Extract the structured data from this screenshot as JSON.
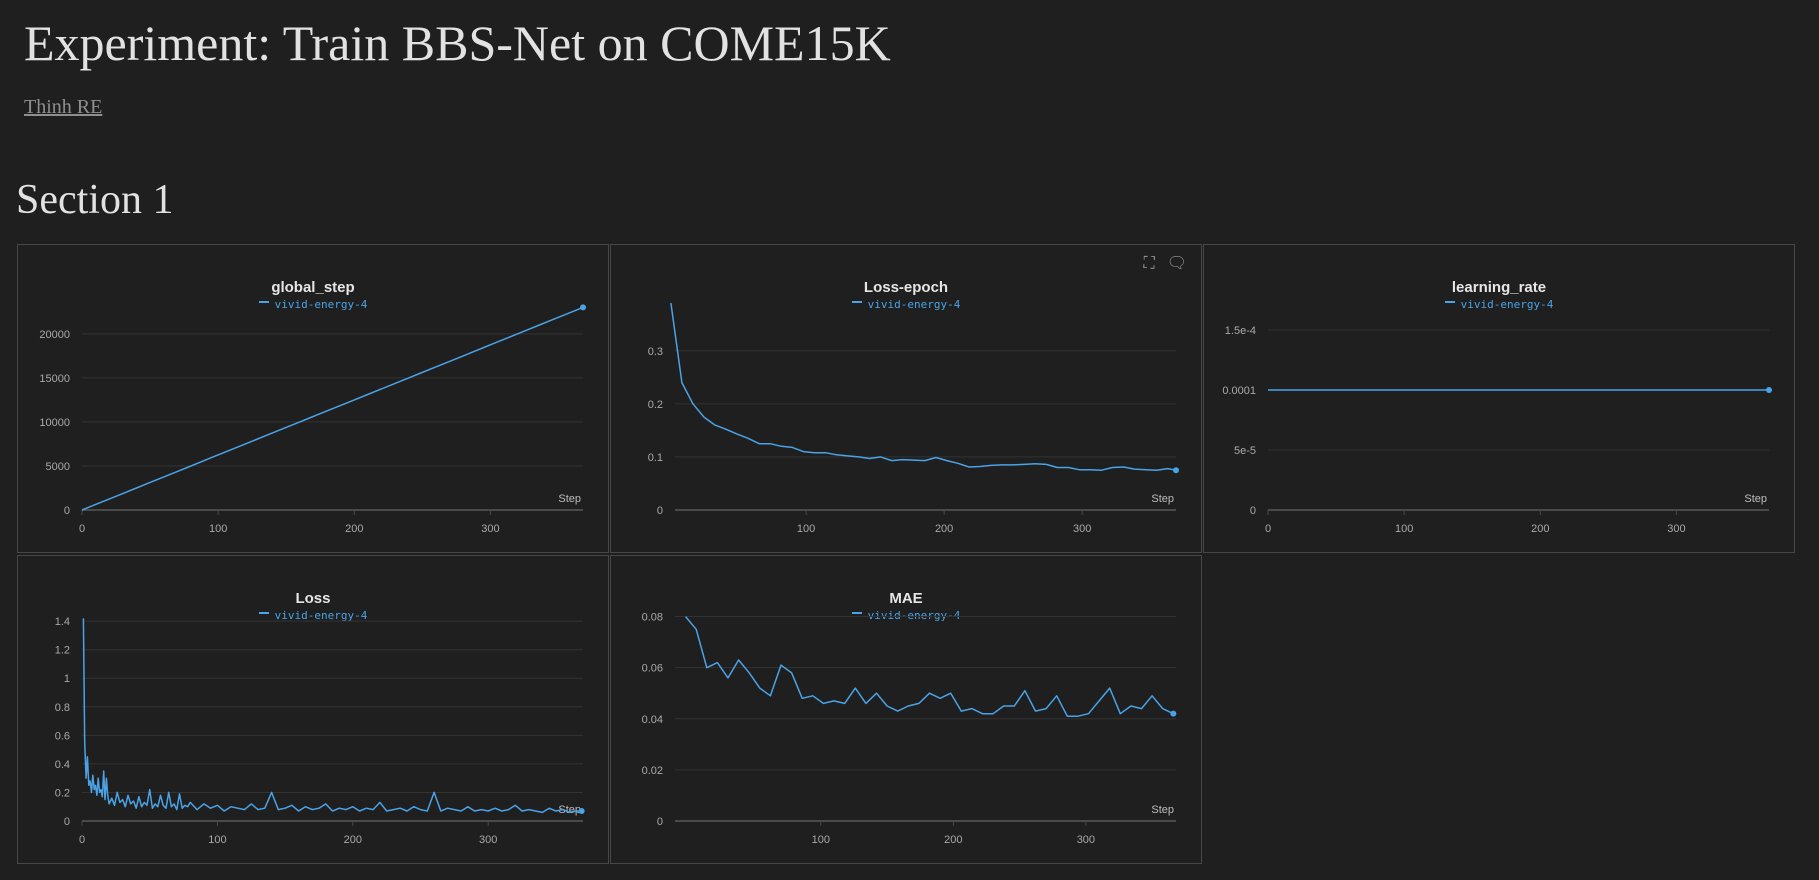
{
  "page": {
    "title": "Experiment: Train BBS-Net on COME15K",
    "author": "Thinh RE",
    "section_title": "Section 1"
  },
  "colors": {
    "series": "#4aa3e6",
    "grid": "#333333",
    "axis": "#4a4a4a"
  },
  "icons": {
    "fullscreen": "fullscreen-icon",
    "comment": "comment-icon"
  },
  "chart_data": [
    {
      "type": "line",
      "title": "global_step",
      "xlabel": "Step",
      "ylabel": "",
      "legend_position": "top-center",
      "legend": "vivid-energy-4",
      "xlim": [
        0,
        368
      ],
      "ylim": [
        0,
        23500
      ],
      "x_ticks": [
        0,
        100,
        200,
        300
      ],
      "y_ticks": [
        {
          "v": 0,
          "t": "0"
        },
        {
          "v": 5000,
          "t": "5000"
        },
        {
          "v": 10000,
          "t": "10000"
        },
        {
          "v": 15000,
          "t": "15000"
        },
        {
          "v": 20000,
          "t": "20000"
        }
      ],
      "series": [
        {
          "name": "vivid-energy-4",
          "x": [
            0,
            8,
            16,
            24,
            32,
            40,
            48,
            56,
            64,
            72,
            80,
            88,
            96,
            104,
            112,
            120,
            128,
            136,
            144,
            152,
            160,
            168,
            176,
            184,
            192,
            200,
            208,
            216,
            224,
            232,
            240,
            248,
            256,
            264,
            272,
            280,
            288,
            296,
            304,
            312,
            320,
            328,
            336,
            344,
            352,
            360,
            368
          ],
          "y": [
            0,
            500,
            1000,
            1500,
            2000,
            2500,
            3000,
            3500,
            4000,
            4500,
            5000,
            5500,
            6000,
            6500,
            7000,
            7500,
            8000,
            8500,
            9000,
            9500,
            10000,
            10500,
            11000,
            11500,
            12000,
            12500,
            13000,
            13500,
            14000,
            14500,
            15000,
            15500,
            16000,
            16500,
            17000,
            17500,
            18000,
            18500,
            19000,
            19500,
            20000,
            20500,
            21000,
            21500,
            22000,
            22500,
            23000
          ]
        }
      ]
    },
    {
      "type": "line",
      "title": "Loss-epoch",
      "xlabel": "Step",
      "ylabel": "",
      "legend_position": "top-center",
      "legend": "vivid-energy-4",
      "xlim": [
        5,
        368
      ],
      "ylim": [
        0,
        0.39
      ],
      "x_ticks": [
        100,
        200,
        300
      ],
      "y_ticks": [
        {
          "v": 0,
          "t": "0"
        },
        {
          "v": 0.1,
          "t": "0.1"
        },
        {
          "v": 0.2,
          "t": "0.2"
        },
        {
          "v": 0.3,
          "t": "0.3"
        }
      ],
      "series": [
        {
          "name": "vivid-energy-4",
          "x": [
            2,
            10,
            18,
            26,
            34,
            42,
            50,
            58,
            66,
            74,
            82,
            90,
            98,
            106,
            114,
            122,
            130,
            138,
            146,
            154,
            162,
            170,
            178,
            186,
            194,
            202,
            210,
            218,
            226,
            234,
            242,
            250,
            258,
            266,
            274,
            282,
            290,
            298,
            306,
            314,
            322,
            330,
            338,
            346,
            354,
            362,
            368
          ],
          "y": [
            0.39,
            0.24,
            0.2,
            0.175,
            0.16,
            0.152,
            0.143,
            0.135,
            0.125,
            0.125,
            0.12,
            0.118,
            0.11,
            0.108,
            0.108,
            0.104,
            0.102,
            0.1,
            0.097,
            0.1,
            0.093,
            0.095,
            0.094,
            0.093,
            0.099,
            0.093,
            0.088,
            0.081,
            0.082,
            0.084,
            0.085,
            0.085,
            0.086,
            0.087,
            0.086,
            0.08,
            0.08,
            0.076,
            0.076,
            0.075,
            0.08,
            0.081,
            0.077,
            0.076,
            0.075,
            0.078,
            0.075
          ]
        }
      ]
    },
    {
      "type": "line",
      "title": "learning_rate",
      "xlabel": "Step",
      "ylabel": "",
      "legend_position": "top-center",
      "legend": "vivid-energy-4",
      "xlim": [
        0,
        368
      ],
      "ylim": [
        0,
        0.0001725
      ],
      "x_ticks": [
        0,
        100,
        200,
        300
      ],
      "y_ticks": [
        {
          "v": 0,
          "t": "0"
        },
        {
          "v": 5e-05,
          "t": "5e-5"
        },
        {
          "v": 0.0001,
          "t": "0.0001"
        },
        {
          "v": 0.00015,
          "t": "1.5e-4"
        }
      ],
      "series": [
        {
          "name": "vivid-energy-4",
          "x": [
            0,
            368
          ],
          "y": [
            0.0001,
            0.0001
          ]
        }
      ]
    },
    {
      "type": "line",
      "title": "Loss",
      "xlabel": "Step",
      "ylabel": "",
      "legend_position": "top-center",
      "legend": "vivid-energy-4",
      "xlim": [
        0,
        370
      ],
      "ylim": [
        0,
        1.45
      ],
      "x_ticks": [
        0,
        100,
        200,
        300
      ],
      "y_ticks": [
        {
          "v": 0,
          "t": "0"
        },
        {
          "v": 0.2,
          "t": "0.2"
        },
        {
          "v": 0.4,
          "t": "0.4"
        },
        {
          "v": 0.6,
          "t": "0.6"
        },
        {
          "v": 0.8,
          "t": "0.8"
        },
        {
          "v": 1,
          "t": "1"
        },
        {
          "v": 1.2,
          "t": "1.2"
        },
        {
          "v": 1.4,
          "t": "1.4"
        }
      ],
      "series": [
        {
          "name": "vivid-energy-4",
          "x": [
            1,
            2,
            3,
            4,
            5,
            6,
            7,
            8,
            9,
            10,
            11,
            12,
            13,
            14,
            15,
            16,
            17,
            18,
            19,
            20,
            22,
            24,
            26,
            28,
            30,
            32,
            34,
            36,
            38,
            40,
            42,
            44,
            46,
            48,
            50,
            52,
            54,
            56,
            58,
            60,
            62,
            64,
            66,
            68,
            70,
            72,
            74,
            76,
            78,
            80,
            85,
            90,
            95,
            100,
            105,
            110,
            115,
            120,
            125,
            130,
            135,
            140,
            145,
            150,
            155,
            160,
            165,
            170,
            175,
            180,
            185,
            190,
            195,
            200,
            205,
            210,
            215,
            220,
            225,
            230,
            235,
            240,
            245,
            250,
            255,
            260,
            265,
            270,
            275,
            280,
            285,
            290,
            295,
            300,
            305,
            310,
            315,
            320,
            325,
            330,
            335,
            340,
            345,
            350,
            355,
            360,
            365,
            369
          ],
          "y": [
            1.42,
            0.55,
            0.3,
            0.45,
            0.25,
            0.28,
            0.2,
            0.32,
            0.22,
            0.25,
            0.18,
            0.3,
            0.2,
            0.22,
            0.17,
            0.35,
            0.15,
            0.3,
            0.18,
            0.12,
            0.16,
            0.11,
            0.2,
            0.13,
            0.15,
            0.1,
            0.18,
            0.12,
            0.14,
            0.09,
            0.17,
            0.1,
            0.13,
            0.11,
            0.22,
            0.09,
            0.12,
            0.1,
            0.18,
            0.11,
            0.09,
            0.2,
            0.1,
            0.12,
            0.08,
            0.19,
            0.09,
            0.11,
            0.1,
            0.13,
            0.08,
            0.12,
            0.09,
            0.11,
            0.07,
            0.1,
            0.09,
            0.08,
            0.12,
            0.08,
            0.09,
            0.2,
            0.08,
            0.09,
            0.11,
            0.07,
            0.1,
            0.08,
            0.09,
            0.12,
            0.07,
            0.09,
            0.08,
            0.1,
            0.07,
            0.09,
            0.08,
            0.13,
            0.07,
            0.08,
            0.09,
            0.07,
            0.1,
            0.08,
            0.07,
            0.2,
            0.07,
            0.09,
            0.08,
            0.07,
            0.1,
            0.07,
            0.08,
            0.07,
            0.09,
            0.07,
            0.08,
            0.11,
            0.07,
            0.08,
            0.07,
            0.06,
            0.09,
            0.07,
            0.08,
            0.06,
            0.07,
            0.07
          ]
        }
      ]
    },
    {
      "type": "line",
      "title": "MAE",
      "xlabel": "Step",
      "ylabel": "",
      "legend_position": "top-center",
      "legend": "vivid-energy-4",
      "xlim": [
        -10,
        368
      ],
      "ylim": [
        0,
        0.081
      ],
      "x_ticks": [
        100,
        200,
        300
      ],
      "y_ticks": [
        {
          "v": 0,
          "t": "0"
        },
        {
          "v": 0.02,
          "t": "0.02"
        },
        {
          "v": 0.04,
          "t": "0.04"
        },
        {
          "v": 0.06,
          "t": "0.06"
        },
        {
          "v": 0.08,
          "t": "0.08"
        }
      ],
      "series": [
        {
          "name": "vivid-energy-4",
          "x": [
            -2,
            6,
            14,
            22,
            30,
            38,
            46,
            54,
            62,
            70,
            78,
            86,
            94,
            102,
            110,
            118,
            126,
            134,
            142,
            150,
            158,
            166,
            174,
            182,
            190,
            198,
            206,
            214,
            222,
            230,
            238,
            246,
            254,
            262,
            270,
            278,
            286,
            294,
            302,
            310,
            318,
            326,
            334,
            342,
            350,
            358,
            366
          ],
          "y": [
            0.08,
            0.075,
            0.06,
            0.062,
            0.056,
            0.063,
            0.058,
            0.052,
            0.049,
            0.061,
            0.058,
            0.048,
            0.049,
            0.046,
            0.047,
            0.046,
            0.052,
            0.046,
            0.05,
            0.045,
            0.043,
            0.045,
            0.046,
            0.05,
            0.048,
            0.05,
            0.043,
            0.044,
            0.042,
            0.042,
            0.045,
            0.045,
            0.051,
            0.043,
            0.044,
            0.049,
            0.041,
            0.041,
            0.042,
            0.047,
            0.052,
            0.042,
            0.045,
            0.044,
            0.049,
            0.044,
            0.042
          ]
        }
      ]
    }
  ]
}
